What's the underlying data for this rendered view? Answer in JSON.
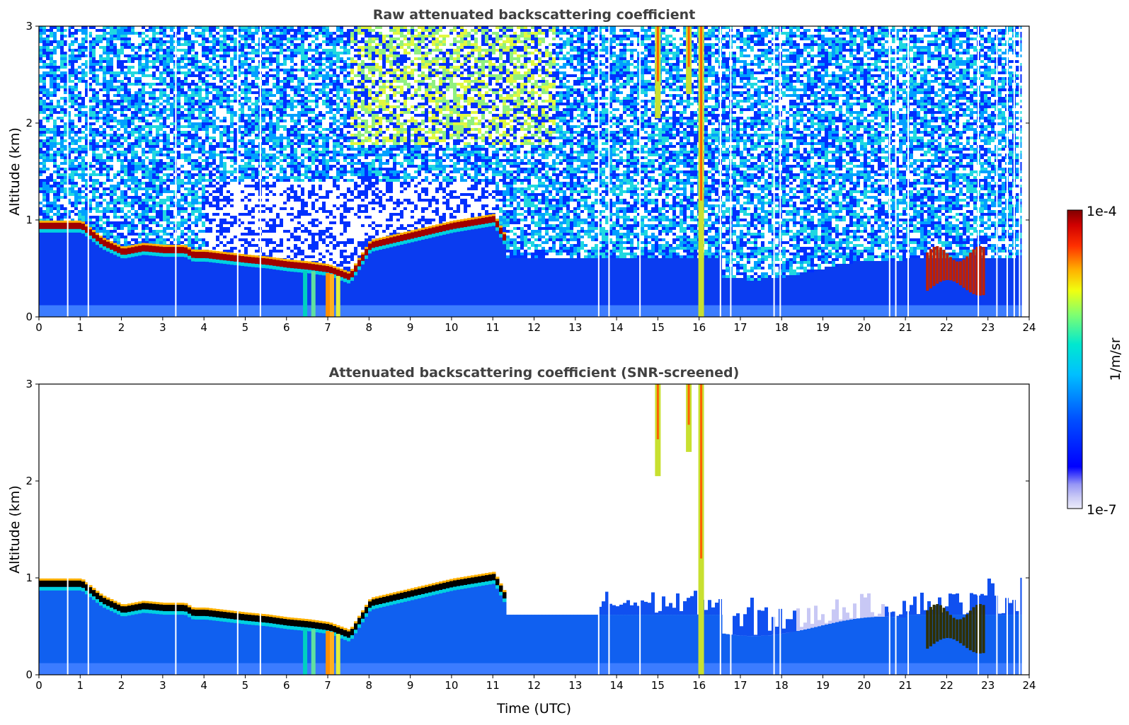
{
  "chart_data": [
    {
      "type": "heatmap",
      "title": "Raw attenuated backscattering coefficient",
      "xlabel": "",
      "ylabel": "Altitude (km)",
      "xlim": [
        0,
        24
      ],
      "ylim": [
        0,
        3
      ],
      "xticks": [
        "0",
        "1",
        "2",
        "3",
        "4",
        "5",
        "6",
        "7",
        "8",
        "9",
        "10",
        "11",
        "12",
        "13",
        "14",
        "15",
        "16",
        "17",
        "18",
        "19",
        "20",
        "21",
        "22",
        "23",
        "24"
      ],
      "yticks": [
        "0",
        "1",
        "2",
        "3"
      ],
      "features": {
        "boundary_layer_top_km": [
          {
            "t": 0,
            "h": 0.95
          },
          {
            "t": 1,
            "h": 0.95
          },
          {
            "t": 1.5,
            "h": 0.78
          },
          {
            "t": 2,
            "h": 0.68
          },
          {
            "t": 2.5,
            "h": 0.72
          },
          {
            "t": 3,
            "h": 0.7
          },
          {
            "t": 3.5,
            "h": 0.7
          },
          {
            "t": 3.7,
            "h": 0.65
          },
          {
            "t": 4,
            "h": 0.65
          },
          {
            "t": 5,
            "h": 0.6
          },
          {
            "t": 5.5,
            "h": 0.58
          },
          {
            "t": 6,
            "h": 0.55
          },
          {
            "t": 6.5,
            "h": 0.53
          },
          {
            "t": 7,
            "h": 0.5
          },
          {
            "t": 7.5,
            "h": 0.42
          },
          {
            "t": 8,
            "h": 0.75
          },
          {
            "t": 9,
            "h": 0.85
          },
          {
            "t": 10,
            "h": 0.95
          },
          {
            "t": 11,
            "h": 1.02
          },
          {
            "t": 11.3,
            "h": 0.78
          }
        ],
        "cloud_streaks": [
          {
            "t": 15.0,
            "top": 3.0,
            "bottom": 2.05
          },
          {
            "t": 15.75,
            "top": 3.0,
            "bottom": 2.3
          },
          {
            "t": 16.05,
            "top": 3.0,
            "bottom": 0.0
          }
        ],
        "late_day_layer": {
          "t_start": 21.5,
          "t_end": 22.9,
          "top": 0.65,
          "bottom": 0.3
        }
      }
    },
    {
      "type": "heatmap",
      "title": "Attenuated backscattering coefficient (SNR-screened)",
      "xlabel": "Time (UTC)",
      "ylabel": "Altitude (km)",
      "xlim": [
        0,
        24
      ],
      "ylim": [
        0,
        3
      ],
      "xticks": [
        "0",
        "1",
        "2",
        "3",
        "4",
        "5",
        "6",
        "7",
        "8",
        "9",
        "10",
        "11",
        "12",
        "13",
        "14",
        "15",
        "16",
        "17",
        "18",
        "19",
        "20",
        "21",
        "22",
        "23",
        "24"
      ],
      "yticks": [
        "0",
        "1",
        "2",
        "3"
      ]
    }
  ],
  "colorbar": {
    "label": "1/m/sr",
    "max_label": "1e-4",
    "min_label": "1e-7",
    "colormap": "jet-like",
    "colors": [
      "#e8e8f8",
      "#a0a0ff",
      "#0000ff",
      "#00a0ff",
      "#00e8e0",
      "#a0ff60",
      "#ffff00",
      "#ff8000",
      "#ff0000",
      "#800000"
    ]
  }
}
